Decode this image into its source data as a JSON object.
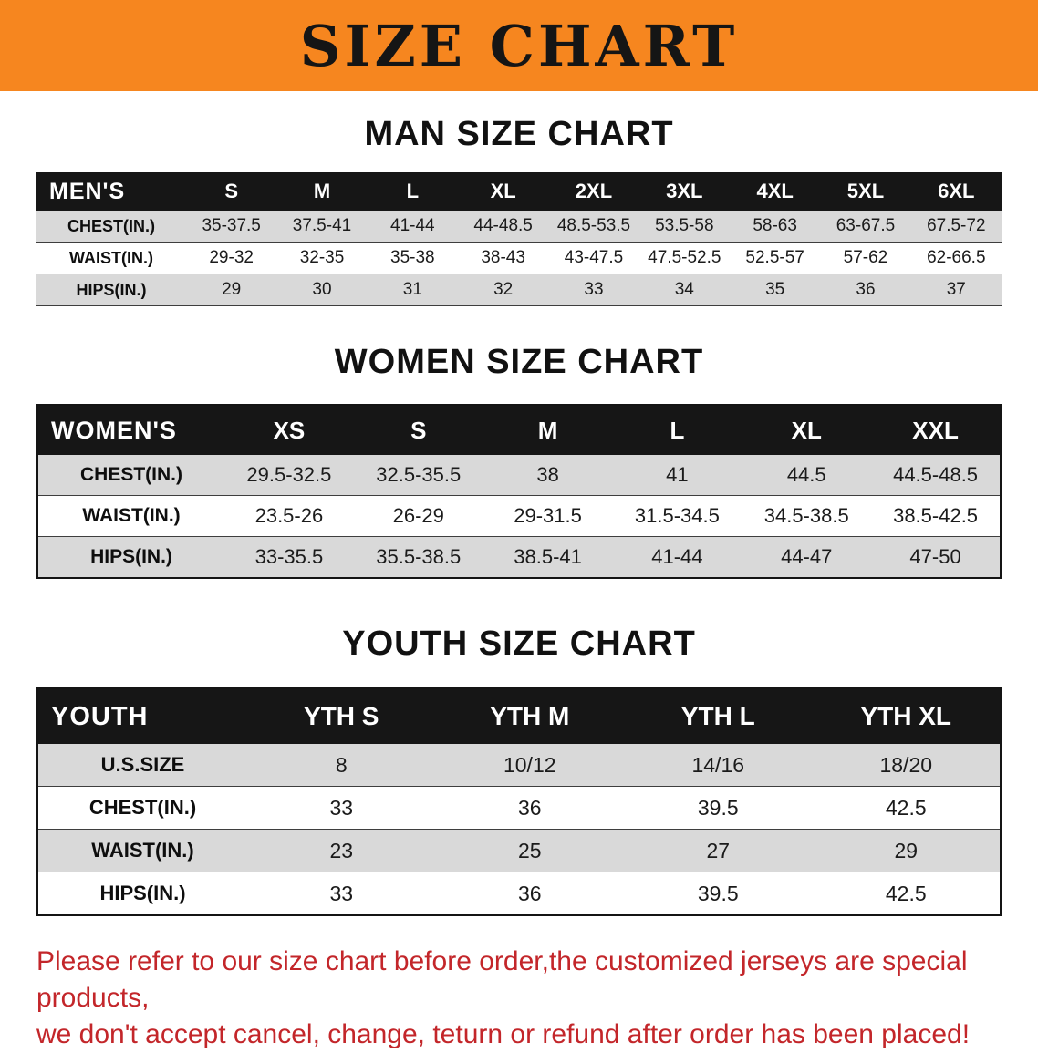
{
  "banner": {
    "title": "SIZE CHART"
  },
  "sections": [
    {
      "id": "men",
      "heading": "MAN SIZE CHART",
      "table": {
        "header": [
          "MEN'S",
          "S",
          "M",
          "L",
          "XL",
          "2XL",
          "3XL",
          "4XL",
          "5XL",
          "6XL"
        ],
        "rows": [
          {
            "label": "CHEST(IN.)",
            "values": [
              "35-37.5",
              "37.5-41",
              "41-44",
              "44-48.5",
              "48.5-53.5",
              "53.5-58",
              "58-63",
              "63-67.5",
              "67.5-72"
            ]
          },
          {
            "label": "WAIST(IN.)",
            "values": [
              "29-32",
              "32-35",
              "35-38",
              "38-43",
              "43-47.5",
              "47.5-52.5",
              "52.5-57",
              "57-62",
              "62-66.5"
            ]
          },
          {
            "label": "HIPS(IN.)",
            "values": [
              "29",
              "30",
              "31",
              "32",
              "33",
              "34",
              "35",
              "36",
              "37"
            ]
          }
        ]
      }
    },
    {
      "id": "women",
      "heading": "WOMEN SIZE CHART",
      "table": {
        "header": [
          "WOMEN'S",
          "XS",
          "S",
          "M",
          "L",
          "XL",
          "XXL"
        ],
        "rows": [
          {
            "label": "CHEST(IN.)",
            "values": [
              "29.5-32.5",
              "32.5-35.5",
              "38",
              "41",
              "44.5",
              "44.5-48.5"
            ]
          },
          {
            "label": "WAIST(IN.)",
            "values": [
              "23.5-26",
              "26-29",
              "29-31.5",
              "31.5-34.5",
              "34.5-38.5",
              "38.5-42.5"
            ]
          },
          {
            "label": "HIPS(IN.)",
            "values": [
              "33-35.5",
              "35.5-38.5",
              "38.5-41",
              "41-44",
              "44-47",
              "47-50"
            ]
          }
        ]
      }
    },
    {
      "id": "youth",
      "heading": "YOUTH SIZE CHART",
      "table": {
        "header": [
          "YOUTH",
          "YTH S",
          "YTH M",
          "YTH L",
          "YTH XL"
        ],
        "rows": [
          {
            "label": "U.S.SIZE",
            "values": [
              "8",
              "10/12",
              "14/16",
              "18/20"
            ]
          },
          {
            "label": "CHEST(IN.)",
            "values": [
              "33",
              "36",
              "39.5",
              "42.5"
            ]
          },
          {
            "label": "WAIST(IN.)",
            "values": [
              "23",
              "25",
              "27",
              "29"
            ]
          },
          {
            "label": "HIPS(IN.)",
            "values": [
              "33",
              "36",
              "39.5",
              "42.5"
            ]
          }
        ]
      }
    }
  ],
  "notice": {
    "lines": [
      "Please refer to our size chart before order,the customized jerseys are special products,",
      "we don't accept cancel, change, teturn or refund after order has been placed!"
    ]
  },
  "colors": {
    "banner_bg": "#f6861f",
    "banner_text": "#151515",
    "table_header_bg": "#161616",
    "table_header_text": "#ffffff",
    "row_shaded": "#d9d9d9",
    "notice_text": "#c3262a"
  }
}
